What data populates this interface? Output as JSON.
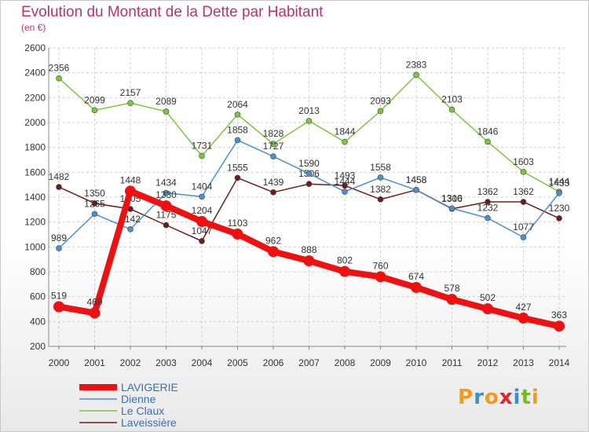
{
  "title": "Evolution du Montant de la Dette par Habitant",
  "unit": "(en €)",
  "logo": {
    "text": "Proxiti",
    "colors": [
      "#f39a1d",
      "#3a8fd0",
      "#f39a1d",
      "#e2232a",
      "#3a8fd0",
      "#7ab829",
      "#f39a1d"
    ]
  },
  "chart_data": {
    "type": "line",
    "x": [
      "2000",
      "2001",
      "2002",
      "2003",
      "2004",
      "2005",
      "2006",
      "2007",
      "2008",
      "2009",
      "2010",
      "2011",
      "2012",
      "2013",
      "2014"
    ],
    "ylim": [
      200,
      2600
    ],
    "yticks": [
      "200",
      "400",
      "600",
      "800",
      "1000",
      "1200",
      "1400",
      "1600",
      "1800",
      "2000",
      "2200",
      "2400",
      "2600"
    ],
    "grid": true,
    "legend": "bottom-left",
    "series": [
      {
        "name": "LAVIGERIE",
        "color": "#ee1111",
        "values": [
          519,
          469,
          1448,
          1330,
          1204,
          1103,
          962,
          888,
          802,
          760,
          674,
          578,
          502,
          427,
          363
        ]
      },
      {
        "name": "Dienne",
        "color": "#4b8fcc",
        "values": [
          989,
          1265,
          1142,
          1434,
          1404,
          1858,
          1727,
          1590,
          1444,
          1558,
          1458,
          1310,
          1232,
          1077,
          1433
        ]
      },
      {
        "name": "Le Claux",
        "color": "#7dc63f",
        "values": [
          2356,
          2099,
          2157,
          2089,
          1731,
          2064,
          1828,
          2013,
          1844,
          2093,
          2383,
          2103,
          1846,
          1603,
          1444
        ]
      },
      {
        "name": "Laveissière",
        "color": "#6b1d1d",
        "values": [
          1482,
          1350,
          1305,
          1175,
          1047,
          1555,
          1439,
          1506,
          1493,
          1382,
          1458,
          1306,
          1362,
          1362,
          1230
        ]
      }
    ]
  }
}
